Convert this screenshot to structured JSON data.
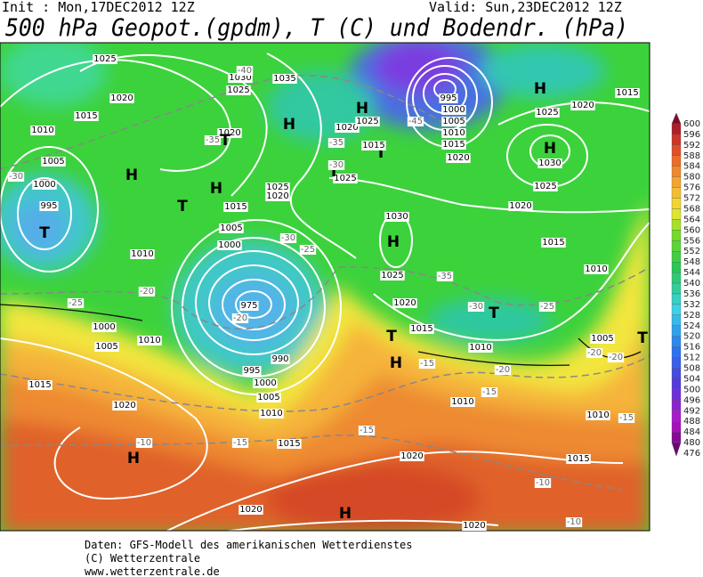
{
  "header": {
    "init": "Init : Mon,17DEC2012 12Z",
    "valid": "Valid: Sun,23DEC2012 12Z",
    "title": "500 hPa Geopot.(gpdm), T (C) und Bodendr. (hPa)"
  },
  "map": {
    "labels": [
      "1025",
      "1020",
      "1015",
      "1010",
      "1005",
      "1000",
      "995",
      "T",
      "H",
      "T",
      "H",
      "H",
      "1030",
      "1025",
      "1035",
      "1020",
      "1025",
      "1020",
      "1015",
      "1005",
      "1000",
      "975",
      "990",
      "995",
      "1000",
      "1005",
      "1010",
      "1015",
      "1020",
      "1015",
      "H",
      "1020",
      "1015",
      "1020",
      "H",
      "1020",
      "-10",
      "-10",
      "-10",
      "-15",
      "-15",
      "-20",
      "-25",
      "-30",
      "H",
      "1015",
      "1020",
      "1025",
      "H",
      "1030",
      "1025",
      "1020",
      "1015",
      "1010",
      "T",
      "-35",
      "-30",
      "-25",
      "1005",
      "-20",
      "1010",
      "1015",
      "T",
      "H",
      "-15",
      "-20",
      "-15",
      "1010",
      "-20",
      "1010",
      "-15",
      "H",
      "1030",
      "1025",
      "1020",
      "T",
      "1015",
      "1020",
      "-35",
      "1025",
      "T",
      "-30",
      "-40",
      "-45",
      "995",
      "1000",
      "1005",
      "1010",
      "1015",
      "1020",
      "H",
      "1025",
      "-35",
      "T",
      "1010",
      "1005",
      "1000",
      "-20",
      "1010",
      "-30",
      "-25",
      "T"
    ]
  },
  "colorbar": {
    "labels": [
      600,
      596,
      592,
      588,
      584,
      580,
      576,
      572,
      568,
      564,
      560,
      556,
      552,
      548,
      544,
      540,
      536,
      532,
      528,
      524,
      520,
      516,
      512,
      508,
      504,
      500,
      496,
      492,
      488,
      484,
      480,
      476
    ]
  },
  "footer": {
    "lines": [
      "Daten: GFS-Modell des amerikanischen Wetterdienstes",
      "(C) Wetterzentrale",
      "www.wetterzentrale.de"
    ]
  }
}
